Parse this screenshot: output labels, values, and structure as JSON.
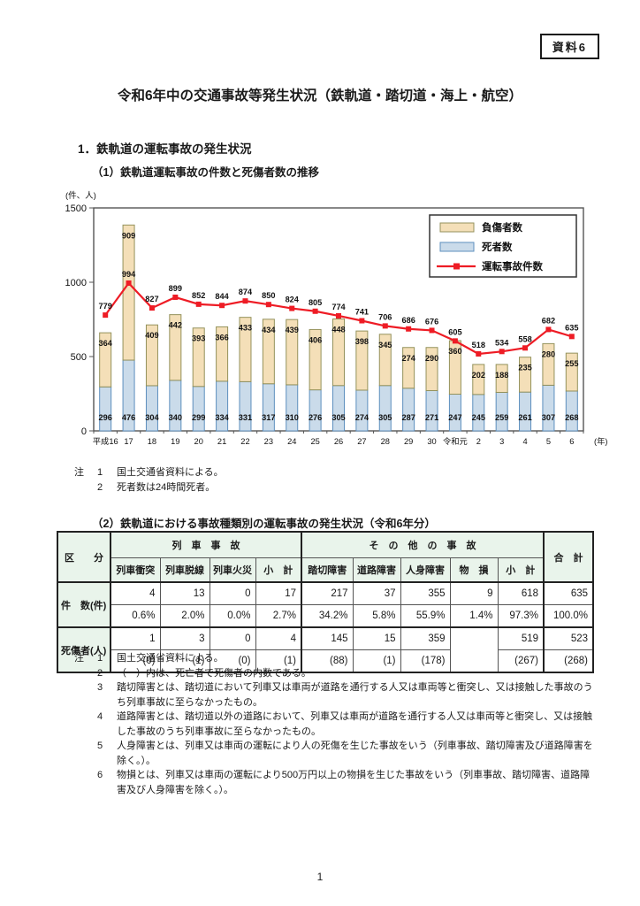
{
  "page": {
    "tag": "資料6",
    "title": "令和6年中の交通事故等発生状況（鉄軌道・踏切道・海上・航空）",
    "page_number": "1"
  },
  "section1": {
    "heading": "1．鉄軌道の運転事故の発生状況",
    "sub_heading": "（1）鉄軌道運転事故の件数と死傷者数の推移"
  },
  "chart_data": {
    "type": "bar",
    "stacked": true,
    "overlay": "line",
    "title": "鉄軌道運転事故の件数と死傷者数の推移",
    "unit_label": "(件、人)",
    "x_suffix": "(年)",
    "categories": [
      "平成16",
      "17",
      "18",
      "19",
      "20",
      "21",
      "22",
      "23",
      "24",
      "25",
      "26",
      "27",
      "28",
      "29",
      "30",
      "令和元",
      "2",
      "3",
      "4",
      "5",
      "6"
    ],
    "series": [
      {
        "name": "死者数",
        "kind": "bar",
        "fill": "#cadbea",
        "stroke": "#5d8fbe",
        "values": [
          296,
          476,
          304,
          340,
          299,
          334,
          331,
          317,
          310,
          276,
          305,
          274,
          305,
          287,
          271,
          247,
          245,
          259,
          261,
          307,
          268
        ]
      },
      {
        "name": "負傷者数",
        "kind": "bar",
        "fill": "#f4dfb8",
        "stroke": "#94925c",
        "values": [
          364,
          909,
          409,
          442,
          393,
          366,
          433,
          434,
          439,
          406,
          448,
          398,
          345,
          274,
          290,
          360,
          202,
          188,
          235,
          280,
          255
        ]
      },
      {
        "name": "運転事故件数",
        "kind": "line",
        "stroke": "#ee1c25",
        "values": [
          779,
          994,
          827,
          899,
          852,
          844,
          874,
          850,
          824,
          805,
          774,
          741,
          706,
          686,
          676,
          605,
          518,
          534,
          558,
          682,
          635
        ]
      }
    ],
    "ylim": [
      0,
      1500
    ],
    "yticks": [
      0,
      500,
      1000,
      1500
    ],
    "grid": false,
    "legend_position": "top-right",
    "legend_order": [
      1,
      0,
      2
    ]
  },
  "chart_notes": {
    "mark": "注",
    "items": [
      {
        "num": "1",
        "text": "国土交通省資料による。"
      },
      {
        "num": "2",
        "text": "死者数は24時間死者。"
      }
    ]
  },
  "section2": {
    "heading": "（2）鉄軌道における事故種類別の運転事故の発生状況（令和6年分）"
  },
  "table": {
    "corner_label": "区　　分",
    "group1": "列　車　事　故",
    "group2": "そ　の　他　の　事　故",
    "total_label": "合　計",
    "columns": [
      "列車衝突",
      "列車脱線",
      "列車火災",
      "小　計",
      "踏切障害",
      "道路障害",
      "人身障害",
      "物　損",
      "小　計"
    ],
    "rows": [
      {
        "label": "件　数(件)",
        "line1": [
          "4",
          "13",
          "0",
          "17",
          "217",
          "37",
          "355",
          "9",
          "618",
          "635"
        ],
        "line2": [
          "0.6%",
          "2.0%",
          "0.0%",
          "2.7%",
          "34.2%",
          "5.8%",
          "55.9%",
          "1.4%",
          "97.3%",
          "100.0%"
        ]
      },
      {
        "label": "死傷者(人)",
        "line1": [
          "1",
          "3",
          "0",
          "4",
          "145",
          "15",
          "359",
          "",
          "519",
          "523"
        ],
        "line2": [
          "(0)",
          "(1)",
          "(0)",
          "(1)",
          "(88)",
          "(1)",
          "(178)",
          "",
          "(267)",
          "(268)"
        ],
        "diagonal_column": 7
      }
    ]
  },
  "table_notes": {
    "mark": "注",
    "items": [
      {
        "num": "1",
        "text": "国土交通省資料による。"
      },
      {
        "num": "2",
        "text": "（　）内は、死亡者で死傷者の内数である。"
      },
      {
        "num": "3",
        "text": "踏切障害とは、踏切道において列車又は車両が道路を通行する人又は車両等と衝突し、又は接触した事故のうち列車事故に至らなかったもの。"
      },
      {
        "num": "4",
        "text": "道路障害とは、踏切道以外の道路において、列車又は車両が道路を通行する人又は車両等と衝突し、又は接触した事故のうち列車事故に至らなかったもの。"
      },
      {
        "num": "5",
        "text": "人身障害とは、列車又は車両の運転により人の死傷を生じた事故をいう（列車事故、踏切障害及び道路障害を除く。）。"
      },
      {
        "num": "6",
        "text": "物損とは、列車又は車両の運転により500万円以上の物損を生じた事故をいう（列車事故、踏切障害、道路障害及び人身障害を除く。）。"
      }
    ]
  }
}
